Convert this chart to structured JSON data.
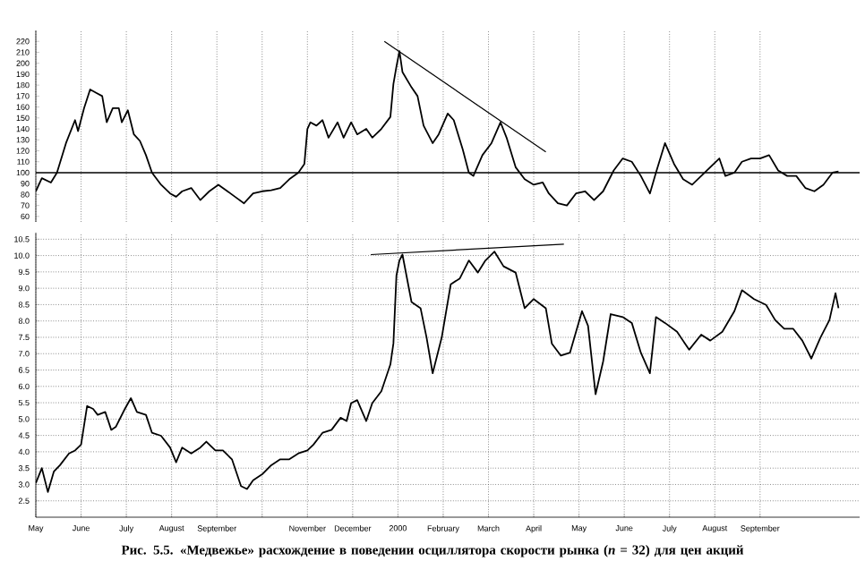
{
  "chart_data": [
    {
      "type": "line",
      "xlim": [
        "1999-05-01",
        "2000-11-07"
      ],
      "ylim": [
        55,
        230
      ],
      "xticks": [
        "1999-05",
        "1999-06",
        "1999-07",
        "1999-08",
        "1999-09",
        "1999-10",
        "1999-11",
        "1999-12",
        "2000-01",
        "2000-02",
        "2000-03",
        "2000-04",
        "2000-05",
        "2000-06",
        "2000-07",
        "2000-08",
        "2000-09"
      ],
      "yticks": [
        60,
        70,
        80,
        90,
        100,
        110,
        120,
        130,
        140,
        150,
        160,
        170,
        180,
        190,
        200,
        210,
        220
      ],
      "tick_labels": "y",
      "grid": "x",
      "ref_lines": [
        {
          "axis": "y",
          "value": 100,
          "color": "#000000"
        }
      ],
      "series": [
        {
          "color": "#000000",
          "x": [
            "1999-05-01",
            "1999-05-05",
            "1999-05-11",
            "1999-05-15",
            "1999-05-21",
            "1999-05-27",
            "1999-05-29",
            "1999-06-03",
            "1999-06-07",
            "1999-06-11",
            "1999-06-15",
            "1999-06-18",
            "1999-06-22",
            "1999-06-26",
            "1999-06-28",
            "1999-07-02",
            "1999-07-06",
            "1999-07-10",
            "1999-07-14",
            "1999-07-18",
            "1999-07-24",
            "1999-07-30",
            "1999-08-04",
            "1999-08-08",
            "1999-08-14",
            "1999-08-20",
            "1999-08-26",
            "1999-09-02",
            "1999-09-08",
            "1999-09-13",
            "1999-09-19",
            "1999-09-25",
            "1999-10-01",
            "1999-10-07",
            "1999-10-13",
            "1999-10-19",
            "1999-10-25",
            "1999-10-29",
            "1999-10-31",
            "1999-11-03",
            "1999-11-07",
            "1999-11-11",
            "1999-11-15",
            "1999-11-21",
            "1999-11-25",
            "1999-11-30",
            "1999-12-04",
            "1999-12-10",
            "1999-12-14",
            "1999-12-20",
            "1999-12-26",
            "1999-12-28",
            "1999-12-30",
            "2000-01-02",
            "2000-01-04",
            "2000-01-10",
            "2000-01-14",
            "2000-01-18",
            "2000-01-24",
            "2000-01-28",
            "2000-02-04",
            "2000-02-08",
            "2000-02-14",
            "2000-02-18",
            "2000-02-21",
            "2000-02-27",
            "2000-03-03",
            "2000-03-09",
            "2000-03-13",
            "2000-03-19",
            "2000-03-25",
            "2000-04-01",
            "2000-04-07",
            "2000-04-11",
            "2000-04-17",
            "2000-04-23",
            "2000-04-29",
            "2000-05-05",
            "2000-05-11",
            "2000-05-17",
            "2000-05-24",
            "2000-05-30",
            "2000-06-06",
            "2000-06-12",
            "2000-06-18",
            "2000-06-22",
            "2000-06-28",
            "2000-07-04",
            "2000-07-10",
            "2000-07-16",
            "2000-07-22",
            "2000-07-28",
            "2000-08-04",
            "2000-08-08",
            "2000-08-14",
            "2000-08-19",
            "2000-08-25",
            "2000-09-01",
            "2000-09-07",
            "2000-09-13",
            "2000-09-19",
            "2000-09-25",
            "2000-10-01",
            "2000-10-07",
            "2000-10-13",
            "2000-10-19",
            "2000-10-23"
          ],
          "values": [
            83,
            95,
            91,
            100,
            127,
            148,
            138,
            159,
            176,
            173,
            170,
            146,
            159,
            159,
            146,
            157,
            135,
            129,
            116,
            100,
            89,
            81,
            78,
            83,
            86,
            75,
            83,
            89,
            83,
            78,
            72,
            81,
            83,
            84,
            86,
            94,
            100,
            108,
            140,
            146,
            143,
            148,
            132,
            146,
            132,
            146,
            135,
            140,
            132,
            140,
            151,
            181,
            197,
            211,
            192,
            178,
            170,
            143,
            127,
            135,
            154,
            148,
            121,
            100,
            97,
            116,
            127,
            146,
            132,
            105,
            94,
            89,
            91,
            81,
            72,
            70,
            81,
            83,
            75,
            83,
            102,
            113,
            110,
            97,
            81,
            100,
            127,
            108,
            94,
            89,
            97,
            105,
            113,
            97,
            100,
            110,
            113,
            113,
            116,
            102,
            97,
            97,
            86,
            83,
            89,
            100,
            101
          ]
        },
        {
          "type": "line",
          "color": "#000000",
          "x": [
            "1999-12-22",
            "2000-04-09"
          ],
          "values": [
            220,
            119
          ]
        }
      ]
    },
    {
      "type": "line",
      "xlim": [
        "1999-05-01",
        "2000-11-07"
      ],
      "ylim": [
        2.0,
        10.7
      ],
      "xticks": [
        {
          "value": "1999-05",
          "label": "May"
        },
        {
          "value": "1999-06",
          "label": "June"
        },
        {
          "value": "1999-07",
          "label": "July"
        },
        {
          "value": "1999-08",
          "label": "August"
        },
        {
          "value": "1999-09",
          "label": "September"
        },
        {
          "value": "1999-10",
          "label": null
        },
        {
          "value": "1999-11",
          "label": "November"
        },
        {
          "value": "1999-12",
          "label": "December"
        },
        {
          "value": "2000-01",
          "label": "2000"
        },
        {
          "value": "2000-02",
          "label": "February"
        },
        {
          "value": "2000-03",
          "label": "March"
        },
        {
          "value": "2000-04",
          "label": "April"
        },
        {
          "value": "2000-05",
          "label": "May"
        },
        {
          "value": "2000-06",
          "label": "June"
        },
        {
          "value": "2000-07",
          "label": "July"
        },
        {
          "value": "2000-08",
          "label": "August"
        },
        {
          "value": "2000-09",
          "label": "September"
        }
      ],
      "yticks": [
        {
          "value": 2.5,
          "label": "2.5"
        },
        {
          "value": 3,
          "label": "3.0"
        },
        {
          "value": 3.5,
          "label": "3.5"
        },
        {
          "value": 4,
          "label": "4.0"
        },
        {
          "value": 4.5,
          "label": "4.5"
        },
        {
          "value": 5,
          "label": "5.0"
        },
        {
          "value": 5.5,
          "label": "5.5"
        },
        {
          "value": 6,
          "label": "6.0"
        },
        {
          "value": 6.5,
          "label": "6.5"
        },
        {
          "value": 7,
          "label": "7.0"
        },
        {
          "value": 7.5,
          "label": "7.5"
        },
        {
          "value": 8,
          "label": "8.0"
        },
        {
          "value": 8.5,
          "label": "8.5"
        },
        {
          "value": 9,
          "label": "9.0"
        },
        {
          "value": 9.5,
          "label": "9.5"
        },
        {
          "value": 10,
          "label": "10.0"
        },
        {
          "value": 10.5,
          "label": "10.5"
        }
      ],
      "grid": true,
      "annotations": [
        "Рис. 5.5. «Медвежье» расхождение в поведении осциллятора скорости рынка (*n* = 32) для цен акций"
      ],
      "series": [
        {
          "color": "#000000",
          "x": [
            "1999-05-01",
            "1999-05-05",
            "1999-05-09",
            "1999-05-13",
            "1999-05-17",
            "1999-05-23",
            "1999-05-27",
            "1999-05-31",
            "1999-06-05",
            "1999-06-09",
            "1999-06-12",
            "1999-06-17",
            "1999-06-21",
            "1999-06-24",
            "1999-06-30",
            "1999-07-04",
            "1999-07-08",
            "1999-07-14",
            "1999-07-18",
            "1999-07-24",
            "1999-07-30",
            "1999-08-04",
            "1999-08-08",
            "1999-08-14",
            "1999-08-20",
            "1999-08-24",
            "1999-08-30",
            "1999-09-05",
            "1999-09-11",
            "1999-09-17",
            "1999-09-21",
            "1999-09-25",
            "1999-10-01",
            "1999-10-07",
            "1999-10-13",
            "1999-10-19",
            "1999-10-25",
            "1999-10-31",
            "1999-11-05",
            "1999-11-11",
            "1999-11-17",
            "1999-11-23",
            "1999-11-27",
            "1999-11-30",
            "1999-12-04",
            "1999-12-10",
            "1999-12-14",
            "1999-12-20",
            "1999-12-26",
            "1999-12-28",
            "1999-12-30",
            "2000-01-02",
            "2000-01-04",
            "2000-01-10",
            "2000-01-16",
            "2000-01-20",
            "2000-01-24",
            "2000-01-30",
            "2000-02-06",
            "2000-02-12",
            "2000-02-18",
            "2000-02-24",
            "2000-02-29",
            "2000-03-05",
            "2000-03-11",
            "2000-03-19",
            "2000-03-25",
            "2000-04-01",
            "2000-04-09",
            "2000-04-13",
            "2000-04-19",
            "2000-04-25",
            "2000-05-03",
            "2000-05-07",
            "2000-05-12",
            "2000-05-17",
            "2000-05-22",
            "2000-05-30",
            "2000-06-06",
            "2000-06-12",
            "2000-06-18",
            "2000-06-22",
            "2000-06-28",
            "2000-07-06",
            "2000-07-14",
            "2000-07-22",
            "2000-07-28",
            "2000-08-06",
            "2000-08-14",
            "2000-08-19",
            "2000-08-27",
            "2000-09-05",
            "2000-09-11",
            "2000-09-17",
            "2000-09-23",
            "2000-09-29",
            "2000-10-05",
            "2000-10-11",
            "2000-10-17",
            "2000-10-21",
            "2000-10-23"
          ],
          "values": [
            3.04,
            3.5,
            2.77,
            3.4,
            3.59,
            3.95,
            4.04,
            4.22,
            5.4,
            5.31,
            5.13,
            5.22,
            4.67,
            4.76,
            5.31,
            5.64,
            5.22,
            5.13,
            4.58,
            4.49,
            4.13,
            3.68,
            4.13,
            3.95,
            4.13,
            4.31,
            4.04,
            4.04,
            3.77,
            2.95,
            2.86,
            3.13,
            3.31,
            3.59,
            3.77,
            3.77,
            3.95,
            4.04,
            4.22,
            4.58,
            4.67,
            5.04,
            4.94,
            5.49,
            5.58,
            4.94,
            5.49,
            5.85,
            6.67,
            7.31,
            9.39,
            9.85,
            10.03,
            8.58,
            8.39,
            7.49,
            6.4,
            7.49,
            9.12,
            9.3,
            9.85,
            9.48,
            9.85,
            10.12,
            9.67,
            9.48,
            8.39,
            8.67,
            8.39,
            7.31,
            6.94,
            7.03,
            8.3,
            7.85,
            5.76,
            6.76,
            8.21,
            8.12,
            7.94,
            7.03,
            6.4,
            8.12,
            7.94,
            7.67,
            7.12,
            7.58,
            7.4,
            7.67,
            8.3,
            8.94,
            8.67,
            8.49,
            8.03,
            7.76,
            7.76,
            7.4,
            6.85,
            7.49,
            8.03,
            8.85,
            8.39
          ]
        },
        {
          "type": "line",
          "color": "#000000",
          "x": [
            "1999-12-13",
            "2000-04-21"
          ],
          "values": [
            10.03,
            10.35
          ]
        }
      ]
    }
  ]
}
